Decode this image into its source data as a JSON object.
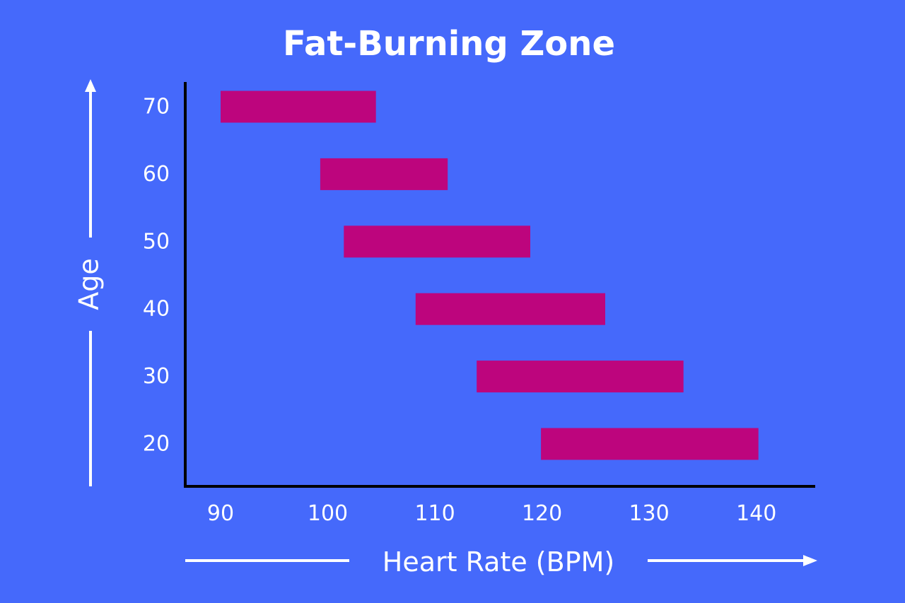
{
  "chart_data": {
    "type": "bar",
    "orientation": "horizontal-range",
    "title": "Fat-Burning Zone",
    "xlabel": "Heart Rate (BPM)",
    "ylabel": "Age",
    "xticks": [
      90,
      100,
      110,
      120,
      130,
      140
    ],
    "yticks": [
      70,
      60,
      50,
      40,
      30,
      20
    ],
    "xlim": [
      86.7,
      145.5
    ],
    "categories": [
      "70",
      "60",
      "50",
      "40",
      "30",
      "20"
    ],
    "ranges": [
      {
        "age": 70,
        "low": 90.0,
        "high": 104.5
      },
      {
        "age": 60,
        "low": 99.3,
        "high": 111.2
      },
      {
        "age": 50,
        "low": 101.5,
        "high": 118.9
      },
      {
        "age": 40,
        "low": 108.2,
        "high": 125.9
      },
      {
        "age": 30,
        "low": 113.9,
        "high": 133.2
      },
      {
        "age": 20,
        "low": 119.9,
        "high": 140.2
      }
    ],
    "colors": {
      "background": "#4569fb",
      "bar": "#bd057d",
      "ink": "#ffffff",
      "axis": "#000000"
    }
  }
}
